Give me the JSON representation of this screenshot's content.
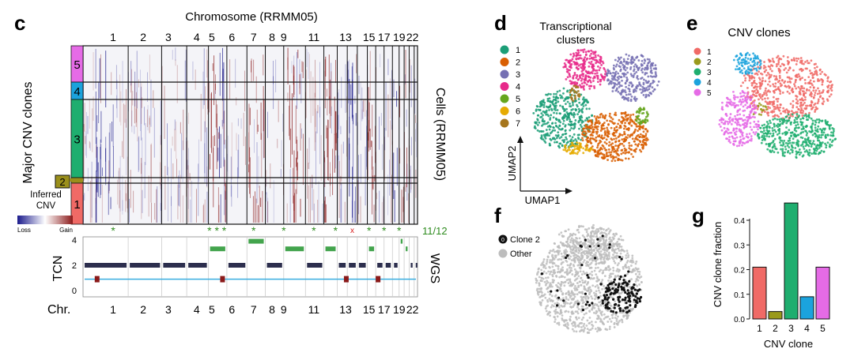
{
  "panels": {
    "c": {
      "letter": "c",
      "top_title": "Chromosome (RRMM05)",
      "chromosomes_top": [
        "1",
        "2",
        "3",
        "4",
        "5",
        "6",
        "7",
        "8",
        "9",
        "11",
        "13",
        "15",
        "17",
        "19",
        "22"
      ],
      "clone_axis_label": "Major CNV clones",
      "clones": [
        "5",
        "4",
        "3",
        "2",
        "1"
      ],
      "clone_colors": [
        "#e56be6",
        "#1ba3dd",
        "#1fae6f",
        "#9a8f1b",
        "#f06a66"
      ],
      "cells_label": "Cells (RRMM05)",
      "legend_title_1": "Inferred",
      "legend_title_2": "CNV",
      "legend_loss": "Loss",
      "legend_gain": "Gain",
      "match_text": "11/12",
      "tcn_label": "TCN",
      "wgs_label": "WGS",
      "tcn_ticks": [
        "0",
        "2",
        "4"
      ],
      "chr_prefix": "Chr.",
      "chromosomes_bottom": [
        "1",
        "2",
        "3",
        "4",
        "5",
        "6",
        "7",
        "8",
        "9",
        "11",
        "13",
        "15",
        "17",
        "19",
        "22"
      ]
    },
    "d": {
      "letter": "d",
      "title_1": "Transcriptional",
      "title_2": "clusters",
      "legend": [
        "1",
        "2",
        "3",
        "4",
        "5",
        "6",
        "7"
      ],
      "colors": [
        "#1b9e77",
        "#d95f02",
        "#7570b3",
        "#e7298a",
        "#66a61e",
        "#e6ab02",
        "#a6761d"
      ],
      "xlabel": "UMAP1",
      "ylabel": "UMAP2"
    },
    "e": {
      "letter": "e",
      "title": "CNV clones",
      "legend": [
        "1",
        "2",
        "3",
        "4",
        "5"
      ],
      "colors": [
        "#f06a66",
        "#9a9a1b",
        "#1fae6f",
        "#1ba3dd",
        "#e56be6"
      ]
    },
    "f": {
      "letter": "f",
      "legend_clone": "Clone 2",
      "legend_clone_symbol": "0",
      "legend_other": "Other"
    },
    "g": {
      "letter": "g"
    }
  },
  "chart_data": {
    "type": "bar",
    "title": "",
    "categories": [
      "1",
      "2",
      "3",
      "4",
      "5"
    ],
    "values": [
      0.21,
      0.03,
      0.47,
      0.09,
      0.21
    ],
    "colors": [
      "#f06a66",
      "#9a9a1b",
      "#1fae6f",
      "#1ba3dd",
      "#e56be6"
    ],
    "xlabel": "CNV clone",
    "ylabel": "CNV clone fraction",
    "ylim": [
      0,
      0.48
    ],
    "yticks": [
      "0.0",
      "0.1",
      "0.2",
      "0.3",
      "0.4"
    ]
  }
}
